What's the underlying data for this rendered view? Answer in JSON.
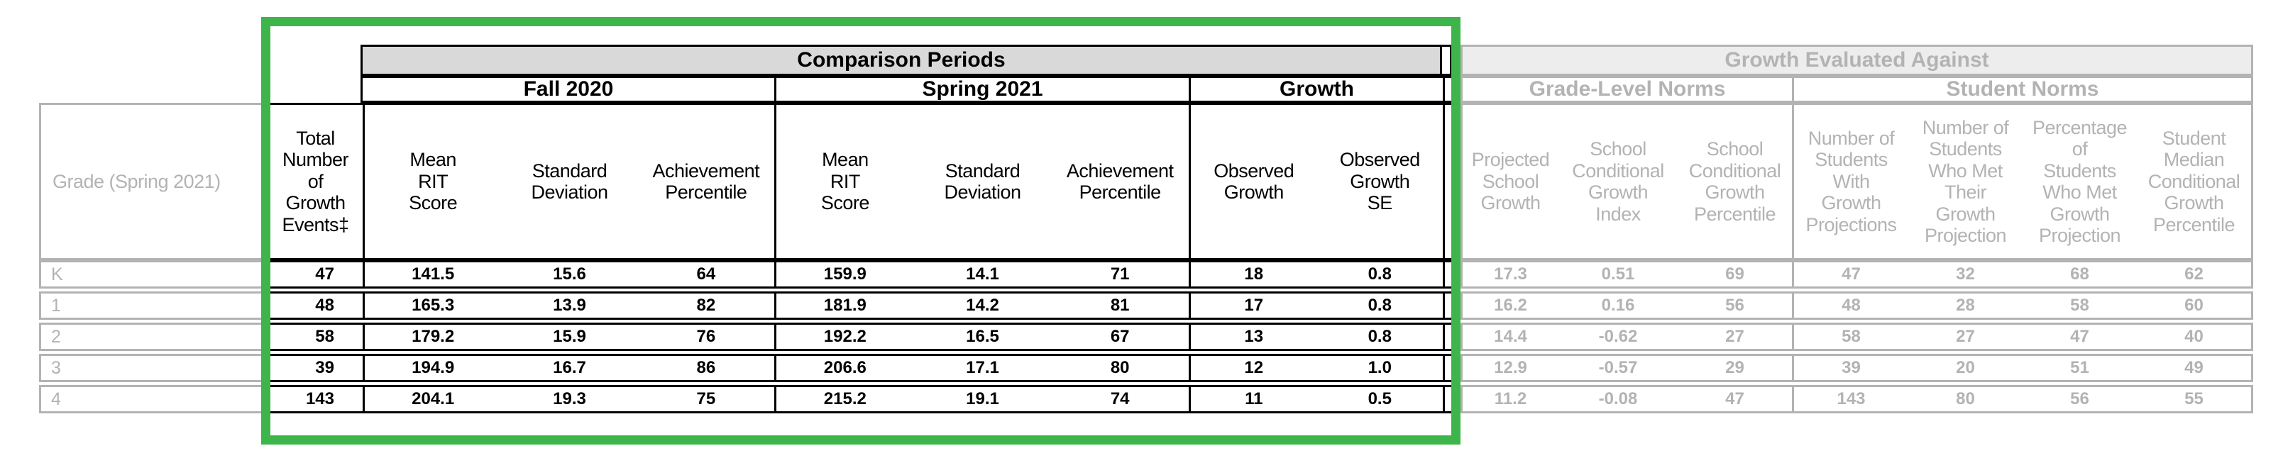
{
  "colors": {
    "highlight_green": "#3eb54a",
    "comparison_band_fill": "#d9d9d9",
    "disabled_band_fill": "#ededed",
    "disabled_text_and_border": "#b3b3b3",
    "active_text_and_border": "#000000"
  },
  "table": {
    "grade_column_header": "Grade (Spring 2021)",
    "total_events_header": "Total\nNumber\nof\nGrowth\nEvents‡",
    "comparison_periods": {
      "title": "Comparison Periods",
      "groups": [
        {
          "label": "Fall 2020",
          "columns": [
            "Mean\nRIT\nScore",
            "Standard\nDeviation",
            "Achievement\nPercentile"
          ]
        },
        {
          "label": "Spring 2021",
          "columns": [
            "Mean\nRIT\nScore",
            "Standard\nDeviation",
            "Achievement\nPercentile"
          ]
        },
        {
          "label": "Growth",
          "columns": [
            "Observed\nGrowth",
            "Observed\nGrowth\nSE"
          ]
        }
      ]
    },
    "growth_evaluated_against": {
      "title": "Growth Evaluated Against",
      "groups": [
        {
          "label": "Grade-Level Norms",
          "columns": [
            "Projected\nSchool\nGrowth",
            "School\nConditional\nGrowth\nIndex",
            "School\nConditional\nGrowth\nPercentile"
          ]
        },
        {
          "label": "Student Norms",
          "columns": [
            "Number of\nStudents\nWith\nGrowth\nProjections",
            "Number of\nStudents\nWho Met\nTheir\nGrowth\nProjection",
            "Percentage\nof\nStudents\nWho Met\nGrowth\nProjection",
            "Student\nMedian\nConditional\nGrowth\nPercentile"
          ]
        }
      ]
    },
    "rows": [
      {
        "grade": "K",
        "values": [
          "47",
          "141.5",
          "15.6",
          "64",
          "159.9",
          "14.1",
          "71",
          "18",
          "0.8",
          "17.3",
          "0.51",
          "69",
          "47",
          "32",
          "68",
          "62"
        ]
      },
      {
        "grade": "1",
        "values": [
          "48",
          "165.3",
          "13.9",
          "82",
          "181.9",
          "14.2",
          "81",
          "17",
          "0.8",
          "16.2",
          "0.16",
          "56",
          "48",
          "28",
          "58",
          "60"
        ]
      },
      {
        "grade": "2",
        "values": [
          "58",
          "179.2",
          "15.9",
          "76",
          "192.2",
          "16.5",
          "67",
          "13",
          "0.8",
          "14.4",
          "-0.62",
          "27",
          "58",
          "27",
          "47",
          "40"
        ]
      },
      {
        "grade": "3",
        "values": [
          "39",
          "194.9",
          "16.7",
          "86",
          "206.6",
          "17.1",
          "80",
          "12",
          "1.0",
          "12.9",
          "-0.57",
          "29",
          "39",
          "20",
          "51",
          "49"
        ]
      },
      {
        "grade": "4",
        "values": [
          "143",
          "204.1",
          "19.3",
          "75",
          "215.2",
          "19.1",
          "74",
          "11",
          "0.5",
          "11.2",
          "-0.08",
          "47",
          "143",
          "80",
          "56",
          "55"
        ]
      }
    ]
  }
}
